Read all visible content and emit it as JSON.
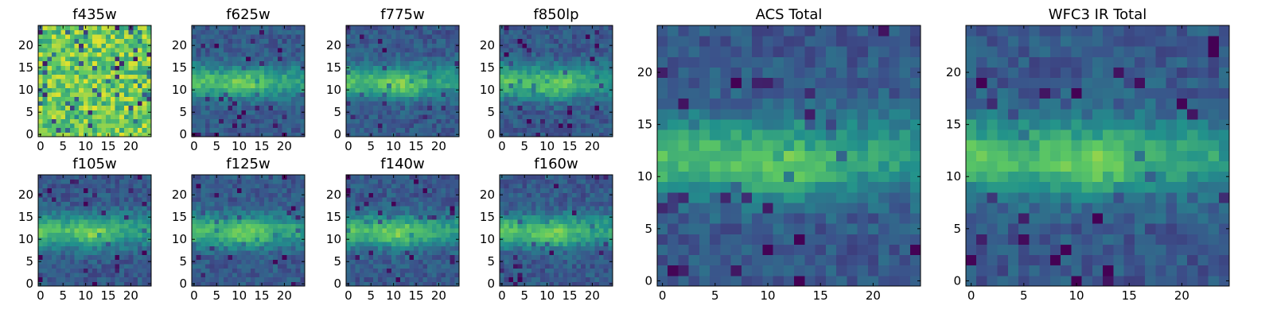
{
  "chart_data": [
    {
      "type": "heatmap",
      "title": "f435w",
      "xticks": [
        "0",
        "5",
        "10",
        "15",
        "20"
      ],
      "yticks": [
        "0",
        "5",
        "10",
        "15",
        "20"
      ],
      "xlim": [
        -0.5,
        24.5
      ],
      "ylim": [
        -0.5,
        24.5
      ],
      "grid": false,
      "pattern": "noise"
    },
    {
      "type": "heatmap",
      "title": "f625w",
      "xticks": [
        "0",
        "5",
        "10",
        "15",
        "20"
      ],
      "yticks": [
        "0",
        "5",
        "10",
        "15",
        "20"
      ],
      "xlim": [
        -0.5,
        24.5
      ],
      "ylim": [
        -0.5,
        24.5
      ],
      "grid": false,
      "pattern": "band"
    },
    {
      "type": "heatmap",
      "title": "f775w",
      "xticks": [
        "0",
        "5",
        "10",
        "15",
        "20"
      ],
      "yticks": [
        "0",
        "5",
        "10",
        "15",
        "20"
      ],
      "xlim": [
        -0.5,
        24.5
      ],
      "ylim": [
        -0.5,
        24.5
      ],
      "grid": false,
      "pattern": "band"
    },
    {
      "type": "heatmap",
      "title": "f850lp",
      "xticks": [
        "0",
        "5",
        "10",
        "15",
        "20"
      ],
      "yticks": [
        "0",
        "5",
        "10",
        "15",
        "20"
      ],
      "xlim": [
        -0.5,
        24.5
      ],
      "ylim": [
        -0.5,
        24.5
      ],
      "grid": false,
      "pattern": "band"
    },
    {
      "type": "heatmap",
      "title": "f105w",
      "xticks": [
        "0",
        "5",
        "10",
        "15",
        "20"
      ],
      "yticks": [
        "0",
        "5",
        "10",
        "15",
        "20"
      ],
      "xlim": [
        -0.5,
        24.5
      ],
      "ylim": [
        -0.5,
        24.5
      ],
      "grid": false,
      "pattern": "band"
    },
    {
      "type": "heatmap",
      "title": "f125w",
      "xticks": [
        "0",
        "5",
        "10",
        "15",
        "20"
      ],
      "yticks": [
        "0",
        "5",
        "10",
        "15",
        "20"
      ],
      "xlim": [
        -0.5,
        24.5
      ],
      "ylim": [
        -0.5,
        24.5
      ],
      "grid": false,
      "pattern": "band"
    },
    {
      "type": "heatmap",
      "title": "f140w",
      "xticks": [
        "0",
        "5",
        "10",
        "15",
        "20"
      ],
      "yticks": [
        "0",
        "5",
        "10",
        "15",
        "20"
      ],
      "xlim": [
        -0.5,
        24.5
      ],
      "ylim": [
        -0.5,
        24.5
      ],
      "grid": false,
      "pattern": "band"
    },
    {
      "type": "heatmap",
      "title": "f160w",
      "xticks": [
        "0",
        "5",
        "10",
        "15",
        "20"
      ],
      "yticks": [
        "0",
        "5",
        "10",
        "15",
        "20"
      ],
      "xlim": [
        -0.5,
        24.5
      ],
      "ylim": [
        -0.5,
        24.5
      ],
      "grid": false,
      "pattern": "band"
    },
    {
      "type": "heatmap",
      "title": "ACS Total",
      "xticks": [
        "0",
        "5",
        "10",
        "15",
        "20"
      ],
      "yticks": [
        "0",
        "5",
        "10",
        "15",
        "20"
      ],
      "xlim": [
        -0.5,
        24.5
      ],
      "ylim": [
        -0.5,
        24.5
      ],
      "grid": false,
      "pattern": "band"
    },
    {
      "type": "heatmap",
      "title": "WFC3 IR Total",
      "xticks": [
        "0",
        "5",
        "10",
        "15",
        "20"
      ],
      "yticks": [
        "0",
        "5",
        "10",
        "15",
        "20"
      ],
      "xlim": [
        -0.5,
        24.5
      ],
      "ylim": [
        -0.5,
        24.5
      ],
      "grid": false,
      "pattern": "band"
    }
  ],
  "colormap": [
    "#440154",
    "#3b528b",
    "#21918c",
    "#5ec962",
    "#fde725"
  ]
}
